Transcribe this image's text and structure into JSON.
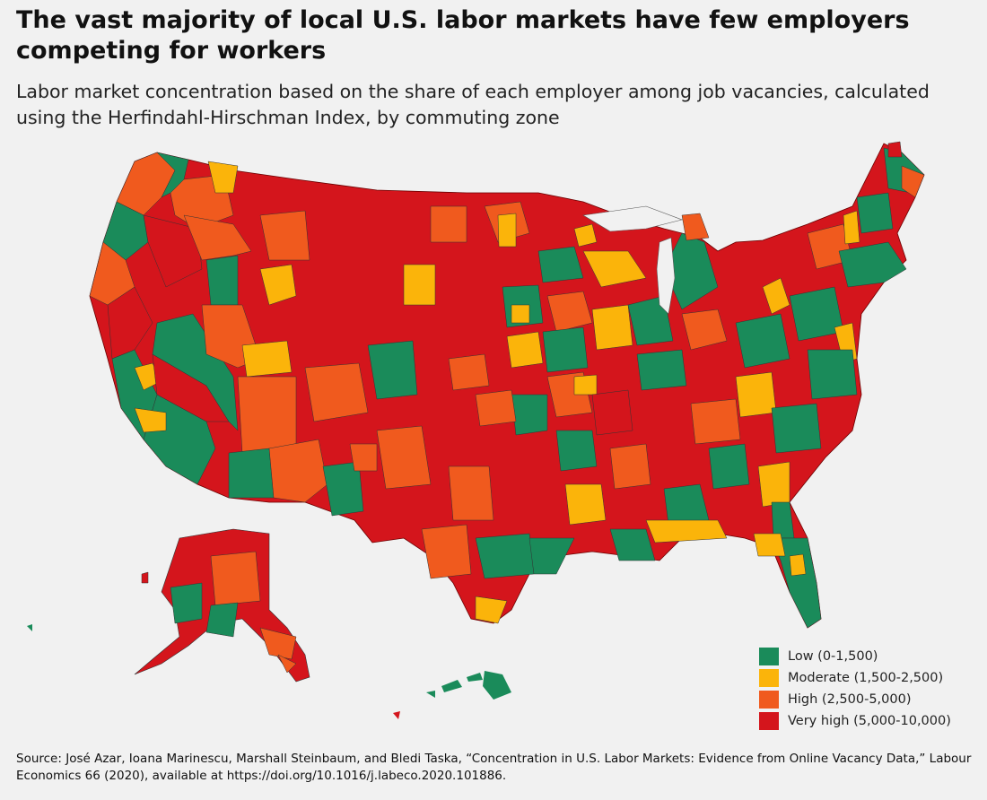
{
  "title": "The vast majority of local U.S. labor markets have few employers competing for workers",
  "subtitle": "Labor market concentration based on the share of each employer among job vacancies, calculated using the Herfindahl-Hirschman Index, by commuting zone",
  "colors": {
    "low": "#1a8b5a",
    "moderate": "#fbb40a",
    "high": "#f05a1e",
    "very_high": "#d4151c",
    "background": "#f1f1f1"
  },
  "legend": [
    {
      "label": "Low (0-1,500)",
      "color": "#1a8b5a"
    },
    {
      "label": "Moderate (1,500-2,500)",
      "color": "#fbb40a"
    },
    {
      "label": "High (2,500-5,000)",
      "color": "#f05a1e"
    },
    {
      "label": "Very high (5,000-10,000)",
      "color": "#d4151c"
    }
  ],
  "source": "Source: José Azar, Ioana Marinescu, Marshall Steinbaum, and Bledi Taska, “Concentration in U.S. Labor Markets: Evidence from Online Vacancy Data,” Labour Economics 66 (2020), available at https://doi.org/10.1016/j.labeco.2020.101886."
}
